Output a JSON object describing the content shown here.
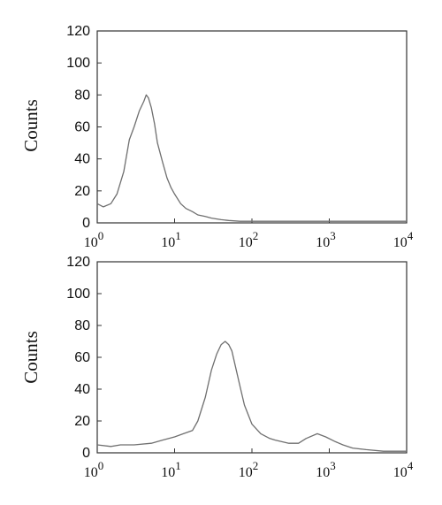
{
  "chart_data": [
    {
      "type": "line",
      "ylabel": "Counts",
      "xscale": "log",
      "xlim": [
        1,
        10000
      ],
      "ylim": [
        0,
        120
      ],
      "yticks": [
        0,
        20,
        40,
        60,
        80,
        100,
        120
      ],
      "xticks": [
        {
          "base": "10",
          "exp": "0"
        },
        {
          "base": "10",
          "exp": "1"
        },
        {
          "base": "10",
          "exp": "2"
        },
        {
          "base": "10",
          "exp": "3"
        },
        {
          "base": "10",
          "exp": "4"
        }
      ],
      "grid": false,
      "color": "#6f6f6f",
      "x": [
        1,
        1.2,
        1.5,
        1.8,
        2.2,
        2.6,
        3.0,
        3.5,
        4.0,
        4.3,
        4.6,
        5.0,
        5.5,
        6.0,
        7.0,
        8.0,
        9.0,
        10,
        12,
        14,
        17,
        20,
        25,
        30,
        40,
        50,
        70,
        100,
        150,
        200,
        300,
        500,
        700,
        1000,
        2000,
        3000,
        5000,
        7000,
        10000
      ],
      "y": [
        12,
        10,
        12,
        18,
        32,
        52,
        60,
        70,
        76,
        80,
        78,
        72,
        62,
        50,
        38,
        28,
        22,
        18,
        12,
        9,
        7,
        5,
        4,
        3,
        2,
        1.5,
        1,
        1,
        1,
        1,
        1,
        1,
        1,
        1,
        1,
        1,
        1,
        1,
        1
      ]
    },
    {
      "type": "line",
      "ylabel": "Counts",
      "xscale": "log",
      "xlim": [
        1,
        10000
      ],
      "ylim": [
        0,
        120
      ],
      "yticks": [
        0,
        20,
        40,
        60,
        80,
        100,
        120
      ],
      "xticks": [
        {
          "base": "10",
          "exp": "0"
        },
        {
          "base": "10",
          "exp": "1"
        },
        {
          "base": "10",
          "exp": "2"
        },
        {
          "base": "10",
          "exp": "3"
        },
        {
          "base": "10",
          "exp": "4"
        }
      ],
      "grid": false,
      "color": "#6f6f6f",
      "x": [
        1,
        1.5,
        2,
        3,
        5,
        7,
        10,
        13,
        17,
        20,
        25,
        30,
        35,
        40,
        45,
        50,
        55,
        60,
        70,
        80,
        100,
        130,
        170,
        200,
        300,
        400,
        500,
        700,
        900,
        1200,
        1500,
        2000,
        3000,
        5000,
        7000,
        10000
      ],
      "y": [
        5,
        4,
        5,
        5,
        6,
        8,
        10,
        12,
        14,
        20,
        35,
        52,
        62,
        68,
        70,
        68,
        64,
        56,
        42,
        30,
        18,
        12,
        9,
        8,
        6,
        6,
        9,
        12,
        10,
        7,
        5,
        3,
        2,
        1,
        1,
        1
      ]
    }
  ]
}
